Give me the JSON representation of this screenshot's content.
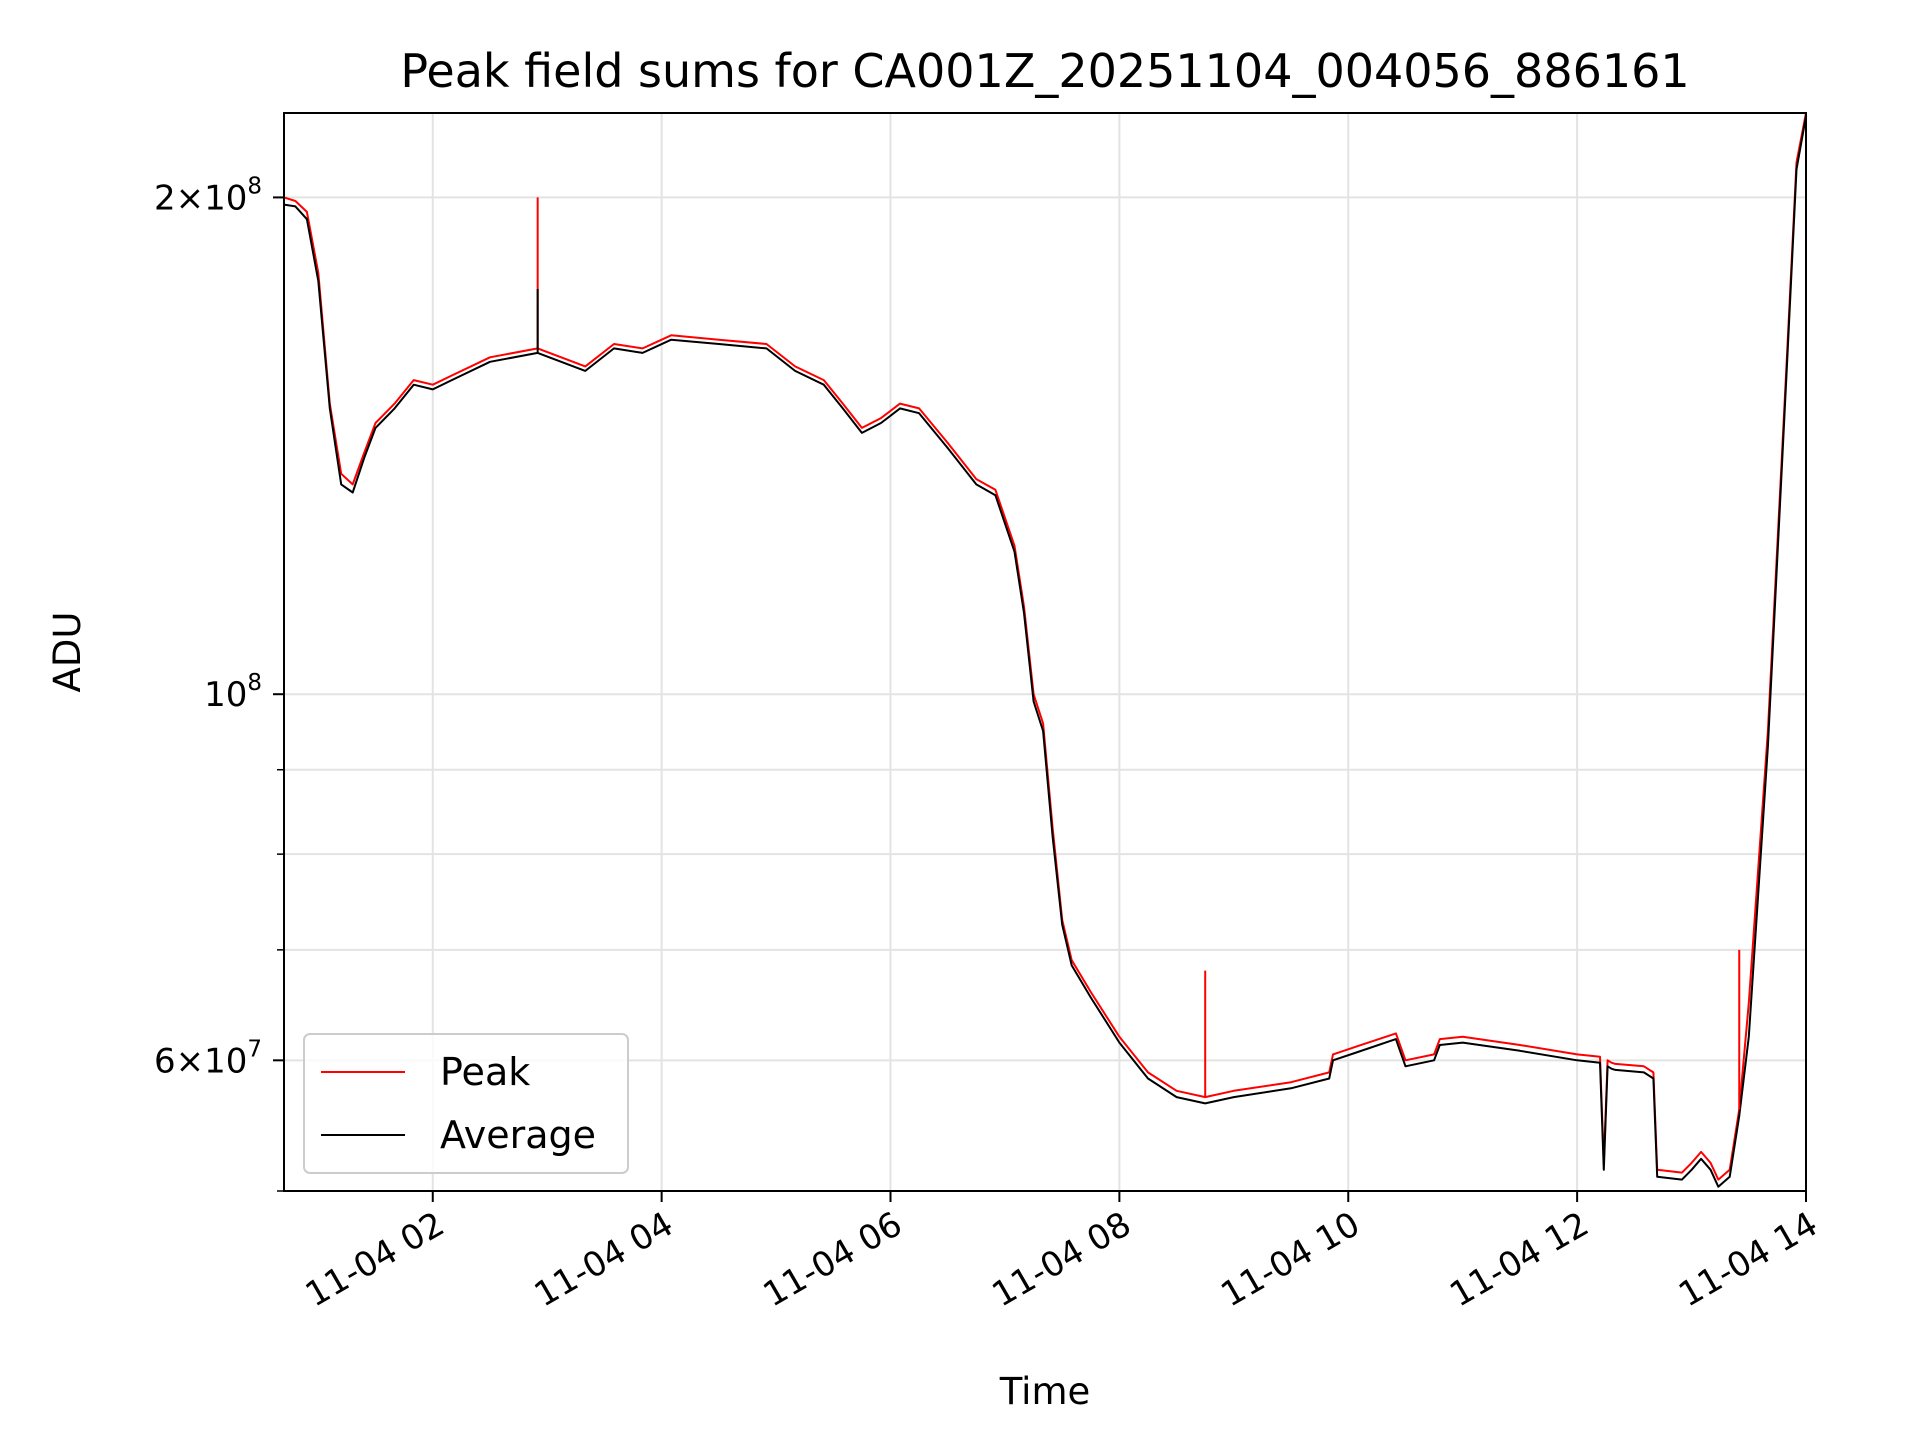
{
  "chart_data": {
    "type": "line",
    "title": "Peak field sums for CA001Z_20251104_004056_886161",
    "xlabel": "Time",
    "ylabel": "ADU",
    "yscale": "log",
    "xlim": [
      "11-04 00:42",
      "11-04 14:00"
    ],
    "ylim": [
      50000000,
      225000000
    ],
    "x_ticks": [
      "11-04 02",
      "11-04 04",
      "11-04 06",
      "11-04 08",
      "11-04 10",
      "11-04 12",
      "11-04 14"
    ],
    "y_ticks": [
      {
        "value": 60000000,
        "mantissa": "6",
        "exp": "7"
      },
      {
        "value": 100000000,
        "mantissa": "",
        "exp": "8"
      },
      {
        "value": 200000000,
        "mantissa": "2",
        "exp": "8"
      }
    ],
    "y_minor_ticks": [
      50000000,
      70000000,
      80000000,
      90000000
    ],
    "grid": true,
    "legend": {
      "placement": "lower-left"
    },
    "series": [
      {
        "name": "Peak",
        "color": "#ff0000",
        "x": [
          "11-04 00:42",
          "11-04 00:48",
          "11-04 00:54",
          "11-04 01:00",
          "11-04 01:06",
          "11-04 01:12",
          "11-04 01:18",
          "11-04 01:24",
          "11-04 01:30",
          "11-04 01:40",
          "11-04 01:50",
          "11-04 02:00",
          "11-04 02:10",
          "11-04 02:30",
          "11-04 02:55",
          "11-04 03:20",
          "11-04 03:35",
          "11-04 03:50",
          "11-04 04:05",
          "11-04 04:30",
          "11-04 04:55",
          "11-04 05:10",
          "11-04 05:25",
          "11-04 05:35",
          "11-04 05:45",
          "11-04 05:55",
          "11-04 06:05",
          "11-04 06:15",
          "11-04 06:30",
          "11-04 06:45",
          "11-04 06:55",
          "11-04 07:05",
          "11-04 07:10",
          "11-04 07:15",
          "11-04 07:20",
          "11-04 07:25",
          "11-04 07:30",
          "11-04 07:35",
          "11-04 07:45",
          "11-04 08:00",
          "11-04 08:15",
          "11-04 08:30",
          "11-04 08:45",
          "11-04 09:00",
          "11-04 09:30",
          "11-04 09:50",
          "11-04 09:52",
          "11-04 10:05",
          "11-04 10:25",
          "11-04 10:30",
          "11-04 10:45",
          "11-04 10:48",
          "11-04 11:00",
          "11-04 11:30",
          "11-04 12:00",
          "11-04 12:12",
          "11-04 12:14",
          "11-04 12:16",
          "11-04 12:18",
          "11-04 12:20",
          "11-04 12:35",
          "11-04 12:40",
          "11-04 12:42",
          "11-04 12:55",
          "11-04 13:00",
          "11-04 13:05",
          "11-04 13:10",
          "11-04 13:14",
          "11-04 13:20",
          "11-04 13:25",
          "11-04 13:30",
          "11-04 13:40",
          "11-04 13:50",
          "11-04 13:55",
          "11-04 14:00"
        ],
        "values": [
          200000000,
          199000000,
          196000000,
          180000000,
          150000000,
          136000000,
          134000000,
          140000000,
          146000000,
          150000000,
          155000000,
          154000000,
          156000000,
          160000000,
          162000000,
          158000000,
          163000000,
          162000000,
          165000000,
          164000000,
          163000000,
          158000000,
          155000000,
          150000000,
          145000000,
          147000000,
          150000000,
          149000000,
          142000000,
          135000000,
          133000000,
          123000000,
          113000000,
          100000000,
          96000000,
          83000000,
          73000000,
          69000000,
          66000000,
          62000000,
          59000000,
          57500000,
          57000000,
          57500000,
          58200000,
          59000000,
          60500000,
          61200000,
          62300000,
          60000000,
          60500000,
          61800000,
          62000000,
          61300000,
          60500000,
          60300000,
          52000000,
          60000000,
          59800000,
          59700000,
          59500000,
          59000000,
          51500000,
          51300000,
          52000000,
          52800000,
          52000000,
          50800000,
          51500000,
          56000000,
          65000000,
          95000000,
          160000000,
          210000000,
          225000000
        ]
      },
      {
        "name": "Average",
        "color": "#000000",
        "x": [
          "11-04 00:42",
          "11-04 00:48",
          "11-04 00:54",
          "11-04 01:00",
          "11-04 01:06",
          "11-04 01:12",
          "11-04 01:18",
          "11-04 01:24",
          "11-04 01:30",
          "11-04 01:40",
          "11-04 01:50",
          "11-04 02:00",
          "11-04 02:10",
          "11-04 02:30",
          "11-04 02:55",
          "11-04 03:20",
          "11-04 03:35",
          "11-04 03:50",
          "11-04 04:05",
          "11-04 04:30",
          "11-04 04:55",
          "11-04 05:10",
          "11-04 05:25",
          "11-04 05:35",
          "11-04 05:45",
          "11-04 05:55",
          "11-04 06:05",
          "11-04 06:15",
          "11-04 06:30",
          "11-04 06:45",
          "11-04 06:55",
          "11-04 07:05",
          "11-04 07:10",
          "11-04 07:15",
          "11-04 07:20",
          "11-04 07:25",
          "11-04 07:30",
          "11-04 07:35",
          "11-04 07:45",
          "11-04 08:00",
          "11-04 08:15",
          "11-04 08:30",
          "11-04 08:45",
          "11-04 09:00",
          "11-04 09:30",
          "11-04 09:50",
          "11-04 09:52",
          "11-04 10:05",
          "11-04 10:25",
          "11-04 10:30",
          "11-04 10:45",
          "11-04 10:48",
          "11-04 11:00",
          "11-04 11:30",
          "11-04 12:00",
          "11-04 12:12",
          "11-04 12:14",
          "11-04 12:16",
          "11-04 12:18",
          "11-04 12:20",
          "11-04 12:35",
          "11-04 12:40",
          "11-04 12:42",
          "11-04 12:55",
          "11-04 13:00",
          "11-04 13:05",
          "11-04 13:10",
          "11-04 13:14",
          "11-04 13:20",
          "11-04 13:25",
          "11-04 13:30",
          "11-04 13:40",
          "11-04 13:50",
          "11-04 13:55",
          "11-04 14:00"
        ],
        "values": [
          198000000,
          197500000,
          194000000,
          178000000,
          149000000,
          134000000,
          132500000,
          139000000,
          145000000,
          149000000,
          154000000,
          153000000,
          155000000,
          159000000,
          161000000,
          157000000,
          162000000,
          161000000,
          164000000,
          163000000,
          162000000,
          157000000,
          154000000,
          149000000,
          144000000,
          146000000,
          149000000,
          148000000,
          141000000,
          134000000,
          132000000,
          122000000,
          112000000,
          99000000,
          95000000,
          82000000,
          72500000,
          68500000,
          65500000,
          61500000,
          58500000,
          57000000,
          56500000,
          57000000,
          57700000,
          58500000,
          60000000,
          60700000,
          61800000,
          59500000,
          60000000,
          61300000,
          61500000,
          60800000,
          60000000,
          59800000,
          51500000,
          59500000,
          59300000,
          59200000,
          59000000,
          58500000,
          51000000,
          50800000,
          51500000,
          52300000,
          51500000,
          50300000,
          51000000,
          55500000,
          62000000,
          93000000,
          158000000,
          208000000,
          224000000
        ]
      }
    ],
    "spikes": [
      {
        "series": "Peak",
        "x": "11-04 02:55",
        "value": 200000000
      },
      {
        "series": "Average",
        "x": "11-04 02:55",
        "value": 176000000
      },
      {
        "series": "Peak",
        "x": "11-04 08:45",
        "value": 68000000
      },
      {
        "series": "Peak",
        "x": "11-04 13:25",
        "value": 70000000
      }
    ]
  }
}
